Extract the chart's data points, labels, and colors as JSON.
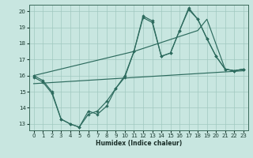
{
  "xlabel": "Humidex (Indice chaleur)",
  "xlim": [
    -0.5,
    23.5
  ],
  "ylim": [
    12.6,
    20.4
  ],
  "yticks": [
    13,
    14,
    15,
    16,
    17,
    18,
    19,
    20
  ],
  "xticks": [
    0,
    1,
    2,
    3,
    4,
    5,
    6,
    7,
    8,
    9,
    10,
    11,
    12,
    13,
    14,
    15,
    16,
    17,
    18,
    19,
    20,
    21,
    22,
    23
  ],
  "background_color": "#c8e6e0",
  "grid_color": "#a0c8c0",
  "line_color": "#2d6b5e",
  "line1_x": [
    0,
    1,
    2,
    3,
    4,
    5,
    6,
    7,
    8,
    9,
    10,
    11,
    12,
    13,
    14,
    15,
    16,
    17,
    18,
    19,
    20,
    21,
    22,
    23
  ],
  "line1_y": [
    16.0,
    15.7,
    15.0,
    13.3,
    13.0,
    12.8,
    13.8,
    13.6,
    14.1,
    15.2,
    16.0,
    17.5,
    19.7,
    19.4,
    17.2,
    17.4,
    18.8,
    20.2,
    19.5,
    18.3,
    17.2,
    16.4,
    16.3,
    16.4
  ],
  "line2_x": [
    0,
    1,
    2,
    3,
    4,
    5,
    6,
    7,
    8,
    9,
    10,
    11,
    12,
    13,
    14,
    15,
    16,
    17,
    18,
    19,
    20,
    21,
    22,
    23
  ],
  "line2_y": [
    15.9,
    15.6,
    14.9,
    13.3,
    13.0,
    12.8,
    13.6,
    13.8,
    14.4,
    15.2,
    15.9,
    17.5,
    19.6,
    19.3,
    17.2,
    17.4,
    18.8,
    20.1,
    19.5,
    18.3,
    17.2,
    16.4,
    16.3,
    16.4
  ],
  "line3_x": [
    0,
    11,
    18,
    19,
    21,
    22,
    23
  ],
  "line3_y": [
    16.0,
    17.5,
    18.8,
    19.5,
    16.4,
    16.3,
    16.4
  ],
  "line4_x": [
    0,
    23
  ],
  "line4_y": [
    15.5,
    16.3
  ]
}
